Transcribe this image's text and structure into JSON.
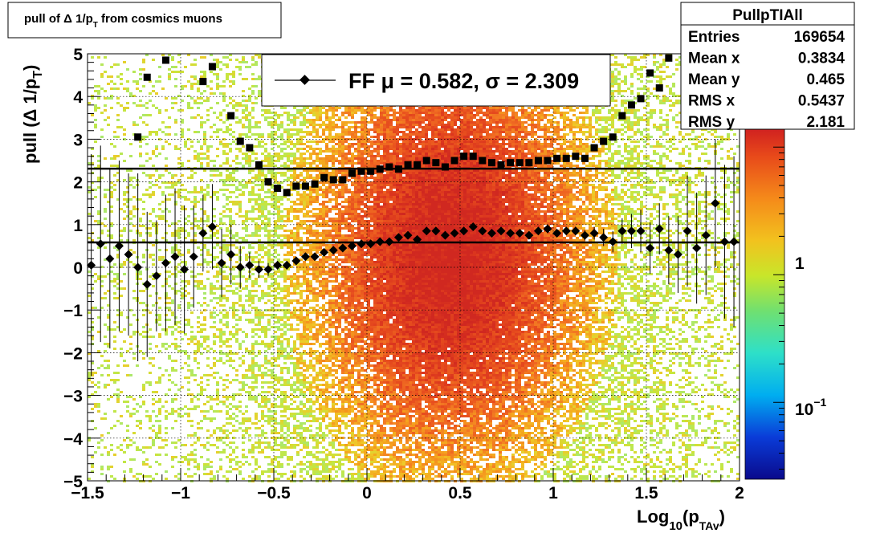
{
  "title_box": {
    "text": "pull of Δ 1/p",
    "sub": "T",
    "suffix": " from cosmics muons"
  },
  "stats": {
    "name": "PullpTIAll",
    "rows": [
      {
        "label": "Entries",
        "value": "169654"
      },
      {
        "label": "Mean x",
        "value": "0.3834"
      },
      {
        "label": "Mean y",
        "value": "0.465"
      },
      {
        "label": "RMS x",
        "value": "0.5437"
      },
      {
        "label": "RMS y",
        "value": "2.181"
      }
    ]
  },
  "legend": {
    "label": "FF μ =  0.582, σ =   2.309",
    "placement": "top-center"
  },
  "colorbar": {
    "labels": [
      {
        "text": "1",
        "value": 1
      },
      {
        "text": "10",
        "sup": "−1",
        "value": 0.1
      }
    ],
    "scale": "log"
  },
  "chart_data": {
    "type": "scatter",
    "title": "pull of Δ 1/pT from cosmics muons",
    "xlabel": "Log10(pTAv)",
    "ylabel": "pull (Δ 1/pT)",
    "xlim": [
      -1.5,
      2.0
    ],
    "ylim": [
      -5,
      5
    ],
    "x_ticks": [
      {
        "v": -1.5,
        "label": "−1.5"
      },
      {
        "v": -1,
        "label": "−1"
      },
      {
        "v": -0.5,
        "label": "−0.5"
      },
      {
        "v": 0,
        "label": "0"
      },
      {
        "v": 0.5,
        "label": "0.5"
      },
      {
        "v": 1,
        "label": "1"
      },
      {
        "v": 1.5,
        "label": "1.5"
      },
      {
        "v": 2,
        "label": "2"
      }
    ],
    "y_ticks": [
      {
        "v": 5,
        "label": "5"
      },
      {
        "v": 4,
        "label": "4"
      },
      {
        "v": 3,
        "label": "3"
      },
      {
        "v": 2,
        "label": "2"
      },
      {
        "v": 1,
        "label": "1"
      },
      {
        "v": 0,
        "label": "0"
      },
      {
        "v": -1,
        "label": "−1"
      },
      {
        "v": -2,
        "label": "−2"
      },
      {
        "v": -3,
        "label": "−3"
      },
      {
        "v": -4,
        "label": "−4"
      },
      {
        "v": -5,
        "label": "−5"
      }
    ],
    "grid": true,
    "mean_line": 0.582,
    "sigma_line": 2.309,
    "series": [
      {
        "marker": "diamond",
        "x": [
          -1.48,
          -1.43,
          -1.38,
          -1.33,
          -1.28,
          -1.23,
          -1.18,
          -1.13,
          -1.08,
          -1.03,
          -0.98,
          -0.93,
          -0.88,
          -0.83,
          -0.78,
          -0.73,
          -0.68,
          -0.63,
          -0.58,
          -0.53,
          -0.48,
          -0.43,
          -0.38,
          -0.33,
          -0.28,
          -0.23,
          -0.18,
          -0.13,
          -0.08,
          -0.03,
          0.02,
          0.07,
          0.12,
          0.17,
          0.22,
          0.27,
          0.32,
          0.37,
          0.42,
          0.47,
          0.52,
          0.57,
          0.62,
          0.67,
          0.72,
          0.77,
          0.82,
          0.87,
          0.92,
          0.97,
          1.02,
          1.07,
          1.12,
          1.17,
          1.22,
          1.27,
          1.32,
          1.37,
          1.42,
          1.47,
          1.52,
          1.57,
          1.62,
          1.67,
          1.72,
          1.77,
          1.82,
          1.87,
          1.92,
          1.97
        ],
        "y": [
          0.05,
          0.55,
          0.2,
          0.5,
          0.3,
          0.0,
          -0.4,
          -0.2,
          0.1,
          0.25,
          -0.05,
          0.25,
          0.8,
          0.95,
          0.1,
          0.3,
          0.0,
          0.05,
          -0.05,
          -0.05,
          0.05,
          0.05,
          0.15,
          0.25,
          0.25,
          0.35,
          0.4,
          0.45,
          0.5,
          0.55,
          0.55,
          0.6,
          0.6,
          0.7,
          0.75,
          0.65,
          0.85,
          0.85,
          0.75,
          0.8,
          0.85,
          0.95,
          0.85,
          0.8,
          0.85,
          0.8,
          0.8,
          0.75,
          0.85,
          0.9,
          0.8,
          0.85,
          0.85,
          0.75,
          0.8,
          0.7,
          0.6,
          0.85,
          0.85,
          0.85,
          0.45,
          0.9,
          0.4,
          0.3,
          0.85,
          0.45,
          0.75,
          1.5,
          0.6,
          0.6
        ],
        "err": [
          2.6,
          2.3,
          2.1,
          2.0,
          1.9,
          2.2,
          1.7,
          1.3,
          1.6,
          1.6,
          1.5,
          1.2,
          0.9,
          1.0,
          0.8,
          0.7,
          0.5,
          0.3,
          0.2,
          0.15,
          0.1,
          0.1,
          0.08,
          0.06,
          0.05,
          0.05,
          0.04,
          0.04,
          0.04,
          0.04,
          0.04,
          0.04,
          0.04,
          0.04,
          0.04,
          0.04,
          0.04,
          0.04,
          0.04,
          0.04,
          0.04,
          0.04,
          0.04,
          0.04,
          0.04,
          0.04,
          0.05,
          0.05,
          0.05,
          0.06,
          0.07,
          0.08,
          0.1,
          0.12,
          0.15,
          0.2,
          0.25,
          0.3,
          0.4,
          0.5,
          0.6,
          0.6,
          0.8,
          0.9,
          1.3,
          1.3,
          1.4,
          1.5,
          1.8,
          2.0
        ]
      },
      {
        "marker": "square",
        "x": [
          -1.23,
          -1.18,
          -1.08,
          -0.88,
          -0.83,
          -0.73,
          -0.68,
          -0.63,
          -0.58,
          -0.53,
          -0.48,
          -0.43,
          -0.38,
          -0.33,
          -0.28,
          -0.23,
          -0.18,
          -0.13,
          -0.08,
          -0.03,
          0.02,
          0.07,
          0.12,
          0.17,
          0.22,
          0.27,
          0.32,
          0.37,
          0.42,
          0.47,
          0.52,
          0.57,
          0.62,
          0.67,
          0.72,
          0.77,
          0.82,
          0.87,
          0.92,
          0.97,
          1.02,
          1.07,
          1.12,
          1.17,
          1.22,
          1.27,
          1.32,
          1.37,
          1.42,
          1.47,
          1.52,
          1.57,
          1.62
        ],
        "y": [
          3.05,
          4.45,
          4.85,
          4.35,
          4.7,
          3.55,
          2.95,
          2.8,
          2.4,
          2.0,
          1.85,
          1.75,
          1.9,
          1.9,
          1.95,
          2.1,
          2.05,
          2.05,
          2.2,
          2.25,
          2.25,
          2.3,
          2.35,
          2.3,
          2.4,
          2.4,
          2.5,
          2.45,
          2.35,
          2.5,
          2.6,
          2.6,
          2.5,
          2.45,
          2.4,
          2.45,
          2.45,
          2.45,
          2.5,
          2.5,
          2.55,
          2.55,
          2.6,
          2.55,
          2.8,
          2.95,
          3.05,
          3.55,
          3.8,
          3.95,
          4.55,
          4.2,
          4.9
        ]
      }
    ]
  }
}
